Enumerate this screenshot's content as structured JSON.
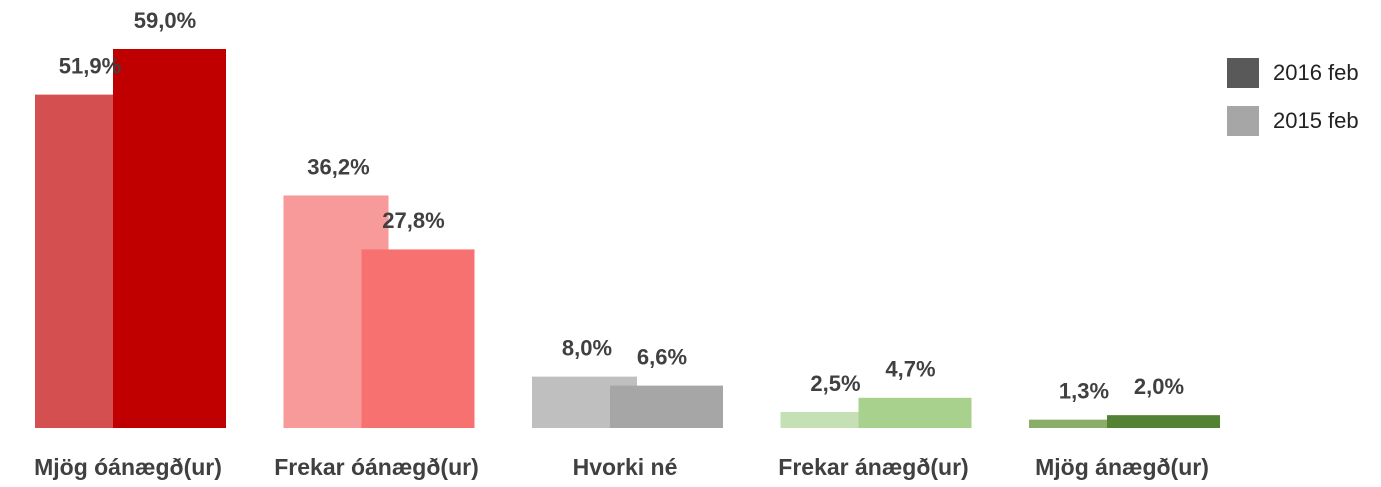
{
  "chart_data": {
    "type": "bar",
    "categories": [
      "Mjög óánægð(ur)",
      "Frekar óánægð(ur)",
      "Hvorki né",
      "Frekar ánægð(ur)",
      "Mjög ánægð(ur)"
    ],
    "series": [
      {
        "name": "2015 feb",
        "color": "#a6a6a6",
        "colors": [
          "#d45050",
          "#f89a9a",
          "#bfbfbf",
          "#c5e0b4",
          "#8aad6a"
        ],
        "values": [
          51.9,
          36.2,
          8.0,
          2.5,
          1.3
        ],
        "value_labels": [
          "51,9%",
          "36,2%",
          "8,0%",
          "2,5%",
          "1,3%"
        ]
      },
      {
        "name": "2016 feb",
        "color": "#595959",
        "colors": [
          "#c00000",
          "#f87171",
          "#a6a6a6",
          "#a9d18e",
          "#548235"
        ],
        "values": [
          59.0,
          27.8,
          6.6,
          4.7,
          2.0
        ],
        "value_labels": [
          "59,0%",
          "27,8%",
          "6,6%",
          "4,7%",
          "2,0%"
        ]
      }
    ],
    "legend": "top-right"
  }
}
